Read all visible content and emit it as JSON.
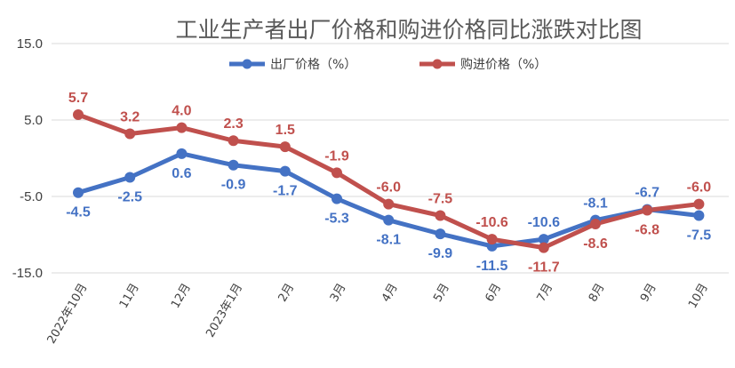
{
  "chart_data": {
    "type": "line",
    "title": "工业生产者出厂价格和购进价格同比涨跌对比图",
    "categories": [
      "2022年10月",
      "11月",
      "12月",
      "2023年1月",
      "2月",
      "3月",
      "4月",
      "5月",
      "6月",
      "7月",
      "8月",
      "9月",
      "10月"
    ],
    "series": [
      {
        "name": "出厂价格（%）",
        "color": "#4472C4",
        "values": [
          -4.5,
          -2.5,
          0.6,
          -0.9,
          -1.7,
          -5.3,
          -8.1,
          -9.9,
          -11.5,
          -10.6,
          -8.1,
          -6.7,
          -7.5
        ],
        "labels": [
          "-4.5",
          "-2.5",
          "0.6",
          "-0.9",
          "-1.7",
          "-5.3",
          "-8.1",
          "-9.9",
          "-11.5",
          "-10.6",
          "-8.1",
          "-6.7",
          "-7.5"
        ]
      },
      {
        "name": "购进价格（%）",
        "color": "#C0504D",
        "values": [
          5.7,
          3.2,
          4.0,
          2.3,
          1.5,
          -1.9,
          -6.0,
          -7.5,
          -10.6,
          -11.7,
          -8.6,
          -6.8,
          -6.0
        ],
        "labels": [
          "5.7",
          "3.2",
          "4.0",
          "2.3",
          "1.5",
          "-1.9",
          "-6.0",
          "-7.5",
          "-10.6",
          "-11.7",
          "-8.6",
          "-6.8",
          "-6.0"
        ]
      }
    ],
    "yticks": [
      "15.0",
      "5.0",
      "-5.0",
      "-15.0"
    ],
    "ytick_values": [
      15,
      5,
      -5,
      -15
    ],
    "ylim": [
      -15,
      15
    ],
    "xlabel": "",
    "ylabel": "",
    "grid": true,
    "legend_position": "top"
  }
}
